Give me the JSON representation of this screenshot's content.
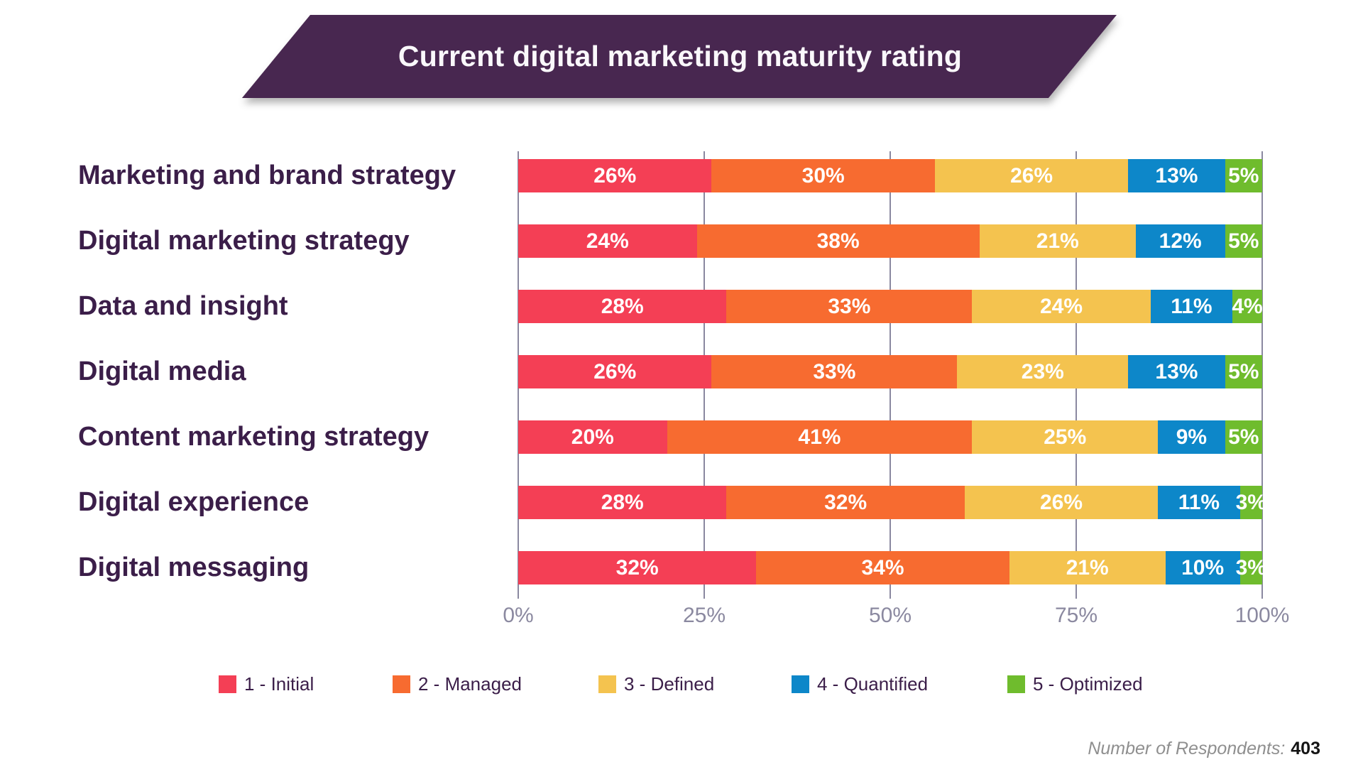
{
  "title": {
    "text": "Current digital marketing maturity rating"
  },
  "colors": {
    "banner": "#482750",
    "category_label": "#3B1E49",
    "gridline": "#8A88A0",
    "tick_label": "#8B89A0",
    "legend_label": "#3B1E49"
  },
  "chart_data": {
    "type": "bar",
    "variant": "horizontal-stacked",
    "title": "Current digital marketing maturity rating",
    "categories": [
      "Marketing and brand strategy",
      "Digital marketing strategy",
      "Data and insight",
      "Digital media",
      "Content marketing strategy",
      "Digital experience",
      "Digital messaging"
    ],
    "series": [
      {
        "name": "1 - Initial",
        "color": "#F43F55",
        "values": [
          26,
          24,
          28,
          26,
          20,
          28,
          32
        ]
      },
      {
        "name": "2 - Managed",
        "color": "#F76B30",
        "values": [
          30,
          38,
          33,
          33,
          41,
          32,
          34
        ]
      },
      {
        "name": "3 - Defined",
        "color": "#F4C34F",
        "values": [
          26,
          21,
          24,
          23,
          25,
          26,
          21
        ]
      },
      {
        "name": "4 - Quantified",
        "color": "#0D87C9",
        "values": [
          13,
          12,
          11,
          13,
          9,
          11,
          10
        ]
      },
      {
        "name": "5 - Optimized",
        "color": "#6FBC2D",
        "values": [
          5,
          5,
          4,
          5,
          5,
          3,
          3
        ]
      }
    ],
    "value_suffix": "%",
    "x_ticks": [
      "0%",
      "25%",
      "50%",
      "75%",
      "100%"
    ],
    "xlim": [
      0,
      100
    ],
    "grid": true,
    "legend_position": "bottom"
  },
  "footer": {
    "label": "Number of Respondents:",
    "value": "403"
  }
}
